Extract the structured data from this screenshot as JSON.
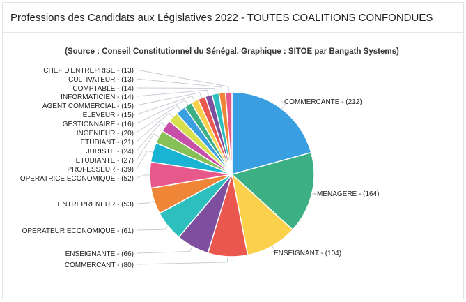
{
  "header": {
    "title": "Professions des Candidats aux Législatives 2022 - TOUTES COALITIONS CONFONDUES"
  },
  "chart_data": {
    "type": "pie",
    "title": "Professions des Candidats aux Législatives 2022 - TOUTES COALITIONS CONFONDUES",
    "subtitle": "(Source : Conseil Constitutionnel du Sénégal. Graphique : SITOE par Bangath Systems)",
    "slices": [
      {
        "label": "COMMERCANTE",
        "value": 212,
        "color": "#3a9fe0"
      },
      {
        "label": "MENAGERE",
        "value": 164,
        "color": "#3daf84"
      },
      {
        "label": "ENSEIGNANT",
        "value": 104,
        "color": "#fbd14b"
      },
      {
        "label": "COMMERCANT",
        "value": 80,
        "color": "#e9574f"
      },
      {
        "label": "ENSEIGNANTE",
        "value": 66,
        "color": "#7e4f9f"
      },
      {
        "label": "OPERATEUR ECONOMIQUE",
        "value": 61,
        "color": "#2dbfbd"
      },
      {
        "label": "ENTREPRENEUR",
        "value": 53,
        "color": "#ef8536"
      },
      {
        "label": "OPERATRICE ECONOMIQUE",
        "value": 52,
        "color": "#e7588b"
      },
      {
        "label": "PROFESSEUR",
        "value": 39,
        "color": "#19b4d3"
      },
      {
        "label": "ETUDIANTE",
        "value": 27,
        "color": "#86c057"
      },
      {
        "label": "JURISTE",
        "value": 24,
        "color": "#c74fa8"
      },
      {
        "label": "ETUDIANT",
        "value": 21,
        "color": "#d9e04d"
      },
      {
        "label": "INGENIEUR",
        "value": 20,
        "color": "#3a9fe0"
      },
      {
        "label": "GESTIONNAIRE",
        "value": 16,
        "color": "#3daf84"
      },
      {
        "label": "ELEVEUR",
        "value": 15,
        "color": "#fbd14b"
      },
      {
        "label": "AGENT COMMERCIAL",
        "value": 15,
        "color": "#e9574f"
      },
      {
        "label": "INFORMATICIEN",
        "value": 14,
        "color": "#7e4f9f"
      },
      {
        "label": "COMPTABLE",
        "value": 14,
        "color": "#2dbfbd"
      },
      {
        "label": "CULTIVATEUR",
        "value": 13,
        "color": "#ef8536"
      },
      {
        "label": "CHEF D'ENTREPRISE",
        "value": 13,
        "color": "#e7588b"
      }
    ]
  }
}
